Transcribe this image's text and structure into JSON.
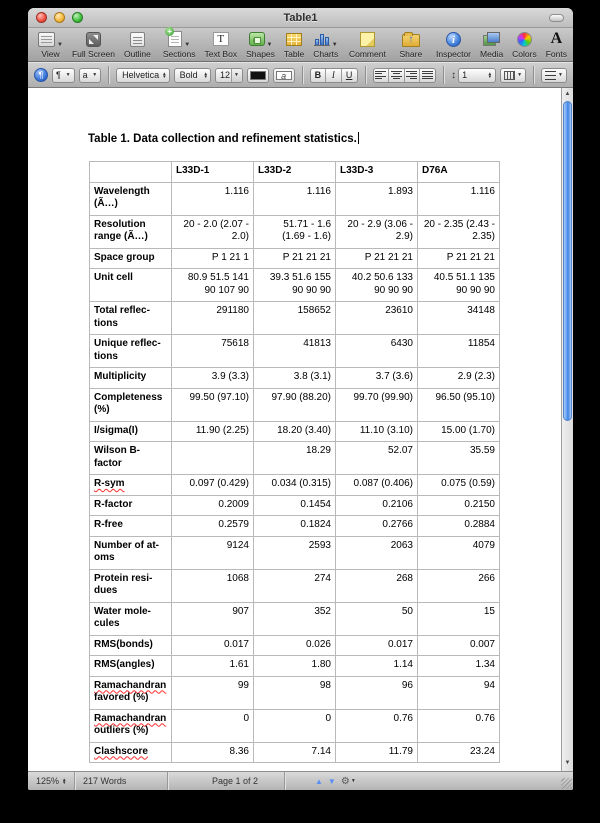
{
  "window": {
    "title": "Table1"
  },
  "toolbar": {
    "items": [
      {
        "label": "View"
      },
      {
        "label": "Full Screen"
      },
      {
        "label": "Outline"
      },
      {
        "label": "Sections"
      },
      {
        "label": "Text Box"
      },
      {
        "label": "Shapes"
      },
      {
        "label": "Table"
      },
      {
        "label": "Charts"
      },
      {
        "label": "Comment"
      },
      {
        "label": "Share"
      },
      {
        "label": "Inspector"
      },
      {
        "label": "Media"
      },
      {
        "label": "Colors"
      },
      {
        "label": "Fonts"
      }
    ]
  },
  "format_bar": {
    "paragraph_style": "¶",
    "character_style": "a",
    "font_family": "Helvetica",
    "typeface": "Bold",
    "font_size": "12",
    "highlight_label": "a",
    "bold": "B",
    "italic": "I",
    "underline": "U",
    "line_spacing": "1"
  },
  "status_bar": {
    "zoom": "125%",
    "word_count": "217 Words",
    "page_indicator": "Page 1 of 2"
  },
  "document": {
    "title": "Table 1.  Data collection and refinement statistics.",
    "table": {
      "columns": [
        "",
        "L33D-1",
        "L33D-2",
        "L33D-3",
        "D76A"
      ],
      "rows": [
        {
          "label": "Wavelength\n(Ã…)",
          "tall": true,
          "values": [
            "1.116",
            "1.116",
            "1.893",
            "1.116"
          ]
        },
        {
          "label": "Resolution\nrange (Ã…)",
          "tall": true,
          "values": [
            "20  - 2.0 (2.07 - 2.0)",
            "51.71  - 1.6 (1.69 - 1.6)",
            "20  - 2.9 (3.06 - 2.9)",
            "20  - 2.35 (2.43 - 2.35)"
          ]
        },
        {
          "label": "Space group",
          "tall": false,
          "values": [
            "P 1 21 1",
            "P 21 21 21",
            "P 21 21 21",
            "P 21 21 21"
          ]
        },
        {
          "label": "Unit cell",
          "tall": true,
          "values": [
            "80.9 51.5 141 90 107 90",
            "39.3 51.6 155 90 90 90",
            "40.2 50.6 133 90 90 90",
            "40.5 51.1 135 90 90 90"
          ]
        },
        {
          "label": "Total reflec-\ntions",
          "tall": true,
          "values": [
            "291180",
            "158652",
            "23610",
            "34148"
          ]
        },
        {
          "label": "Unique reflec-\ntions",
          "tall": true,
          "values": [
            "75618",
            "41813",
            "6430",
            "11854"
          ]
        },
        {
          "label": "Multiplicity",
          "tall": false,
          "values": [
            "3.9 (3.3)",
            "3.8 (3.1)",
            "3.7 (3.6)",
            "2.9 (2.3)"
          ]
        },
        {
          "label": "Completeness\n(%)",
          "tall": true,
          "values": [
            "99.50 (97.10)",
            "97.90 (88.20)",
            "99.70 (99.90)",
            "96.50 (95.10)"
          ]
        },
        {
          "label": "I/sigma(I)",
          "tall": false,
          "values": [
            "11.90 (2.25)",
            "18.20 (3.40)",
            "11.10 (3.10)",
            "15.00 (1.70)"
          ]
        },
        {
          "label": "Wilson B-\nfactor",
          "tall": true,
          "values": [
            "",
            "18.29",
            "52.07",
            "35.59"
          ]
        },
        {
          "label": "R-sym",
          "tall": false,
          "squiggle": true,
          "values": [
            "0.097 (0.429)",
            "0.034 (0.315)",
            "0.087 (0.406)",
            "0.075 (0.59)"
          ]
        },
        {
          "label": "R-factor",
          "tall": false,
          "values": [
            "0.2009",
            "0.1454",
            "0.2106",
            "0.2150"
          ]
        },
        {
          "label": "R-free",
          "tall": false,
          "values": [
            "0.2579",
            "0.1824",
            "0.2766",
            "0.2884"
          ]
        },
        {
          "label": "Number of at-\noms",
          "tall": true,
          "values": [
            "9124",
            "2593",
            "2063",
            "4079"
          ]
        },
        {
          "label": "Protein resi-\ndues",
          "tall": true,
          "values": [
            "1068",
            "274",
            "268",
            "266"
          ]
        },
        {
          "label": "Water mole-\ncules",
          "tall": true,
          "values": [
            "907",
            "352",
            "50",
            "15"
          ]
        },
        {
          "label": "RMS(bonds)",
          "tall": false,
          "values": [
            "0.017",
            "0.026",
            "0.017",
            "0.007"
          ]
        },
        {
          "label": "RMS(angles)",
          "tall": false,
          "values": [
            "1.61",
            "1.80",
            "1.14",
            "1.34"
          ]
        },
        {
          "label": "Ramachandran\nfavored (%)",
          "tall": true,
          "squiggle": true,
          "values": [
            "99",
            "98",
            "96",
            "94"
          ]
        },
        {
          "label": "Ramachandran\noutliers (%)",
          "tall": true,
          "squiggle": true,
          "values": [
            "0",
            "0",
            "0.76",
            "0.76"
          ]
        },
        {
          "label": "Clashscore",
          "tall": false,
          "squiggle": true,
          "values": [
            "8.36",
            "7.14",
            "11.79",
            "23.24"
          ]
        }
      ]
    }
  }
}
